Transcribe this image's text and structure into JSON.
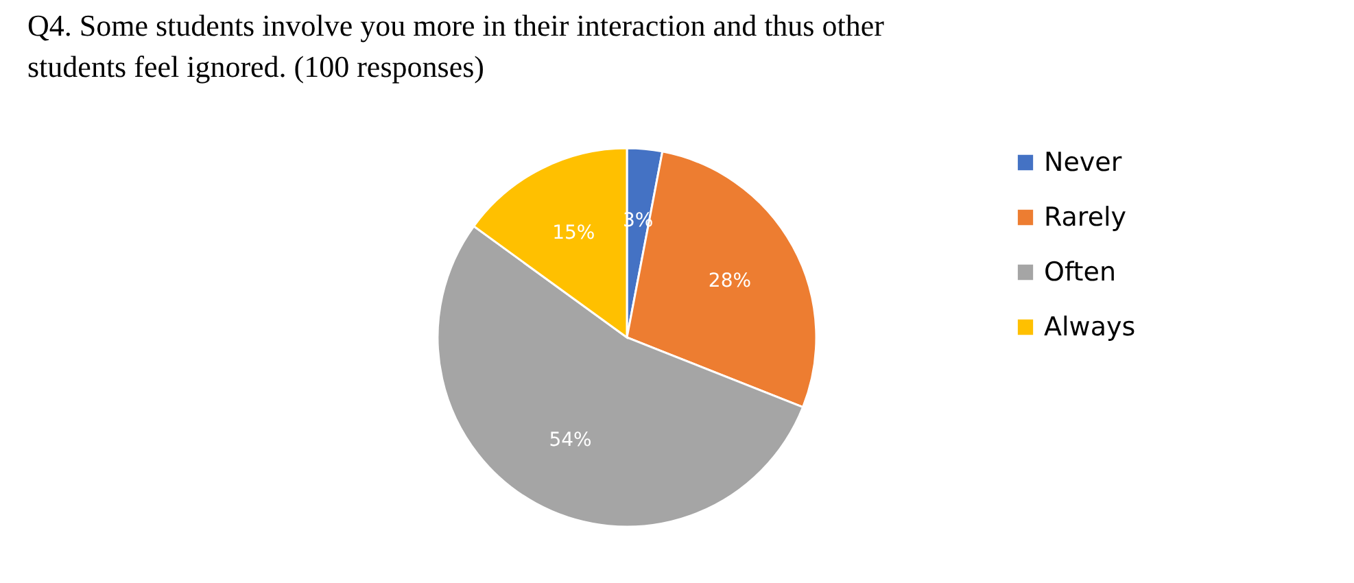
{
  "chart_data": {
    "type": "pie",
    "title": "Q4. Some students involve you more in their interaction and thus other students feel ignored. (100 responses)",
    "categories": [
      "Never",
      "Rarely",
      "Often",
      "Always"
    ],
    "values": [
      3,
      28,
      54,
      15
    ],
    "colors": [
      "#4472c4",
      "#ed7d31",
      "#a5a5a5",
      "#ffc000"
    ],
    "value_labels": [
      "3%",
      "28%",
      "54%",
      "15%"
    ],
    "legend": "right"
  }
}
